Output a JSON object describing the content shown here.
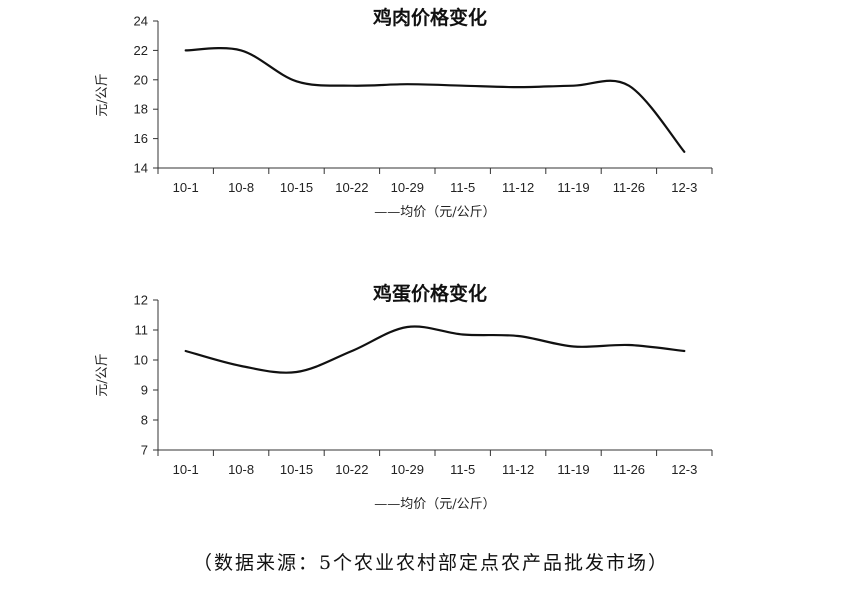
{
  "chart_data": [
    {
      "type": "line",
      "title": "鸡肉价格变化",
      "ylabel": "元/公斤",
      "categories": [
        "10-1",
        "10-8",
        "10-15",
        "10-22",
        "10-29",
        "11-5",
        "11-12",
        "11-19",
        "11-26",
        "12-3"
      ],
      "series": [
        {
          "name": "——均价（元/公斤）",
          "values": [
            22.0,
            22.0,
            19.9,
            19.6,
            19.7,
            19.6,
            19.5,
            19.6,
            19.6,
            15.1
          ]
        }
      ],
      "ylim": [
        14,
        24
      ],
      "yticks": [
        14,
        16,
        18,
        20,
        22,
        24
      ],
      "grid": false,
      "legend": "bottom"
    },
    {
      "type": "line",
      "title": "鸡蛋价格变化",
      "ylabel": "元/公斤",
      "categories": [
        "10-1",
        "10-8",
        "10-15",
        "10-22",
        "10-29",
        "11-5",
        "11-12",
        "11-19",
        "11-26",
        "12-3"
      ],
      "series": [
        {
          "name": "——均价（元/公斤）",
          "values": [
            10.3,
            9.8,
            9.6,
            10.3,
            11.1,
            10.85,
            10.8,
            10.45,
            10.5,
            10.3
          ]
        }
      ],
      "ylim": [
        7,
        12
      ],
      "yticks": [
        7,
        8,
        9,
        10,
        11,
        12
      ],
      "grid": false,
      "legend": "bottom"
    }
  ],
  "source_note": "（数据来源：5个农业农村部定点农产品批发市场）"
}
